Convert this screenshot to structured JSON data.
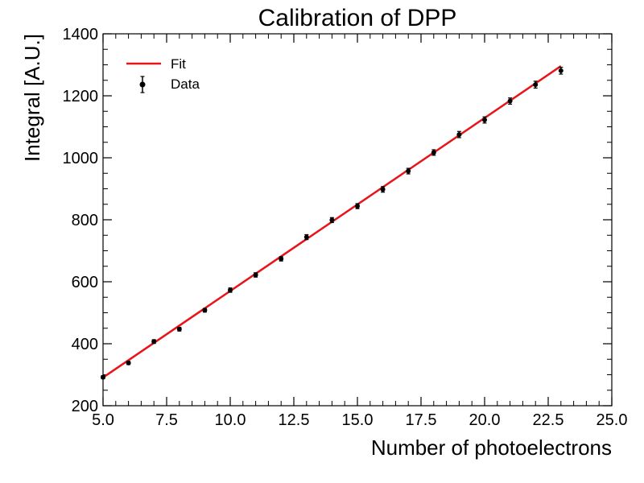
{
  "chart_data": {
    "type": "scatter",
    "title": "Calibration of DPP",
    "xlabel": "Number of photoelectrons",
    "ylabel": "Integral [A.U.]",
    "xlim": [
      5.0,
      25.0
    ],
    "ylim": [
      200,
      1400
    ],
    "xticks": [
      "5.0",
      "7.5",
      "10.0",
      "12.5",
      "15.0",
      "17.5",
      "20.0",
      "22.5",
      "25.0"
    ],
    "xtick_values": [
      5.0,
      7.5,
      10.0,
      12.5,
      15.0,
      17.5,
      20.0,
      22.5,
      25.0
    ],
    "yticks": [
      "200",
      "400",
      "600",
      "800",
      "1000",
      "1200",
      "1400"
    ],
    "ytick_values": [
      200,
      400,
      600,
      800,
      1000,
      1200,
      1400
    ],
    "grid": false,
    "legend_position": "top-left",
    "series": [
      {
        "name": "Data",
        "kind": "errorbar",
        "color": "#000000",
        "x": [
          5,
          6,
          7,
          8,
          9,
          10,
          11,
          12,
          13,
          14,
          15,
          16,
          17,
          18,
          19,
          20,
          21,
          22,
          23
        ],
        "y": [
          292,
          338,
          407,
          447,
          508,
          573,
          622,
          674,
          744,
          799,
          844,
          898,
          957,
          1017,
          1075,
          1122,
          1183,
          1236,
          1281
        ],
        "yerr": [
          5,
          5,
          6,
          6,
          6,
          7,
          7,
          7,
          8,
          8,
          8,
          9,
          9,
          9,
          10,
          10,
          10,
          11,
          11
        ]
      },
      {
        "name": "Fit",
        "kind": "line",
        "color": "#e8141a",
        "x": [
          5,
          23
        ],
        "y": [
          291,
          1296
        ]
      }
    ]
  }
}
